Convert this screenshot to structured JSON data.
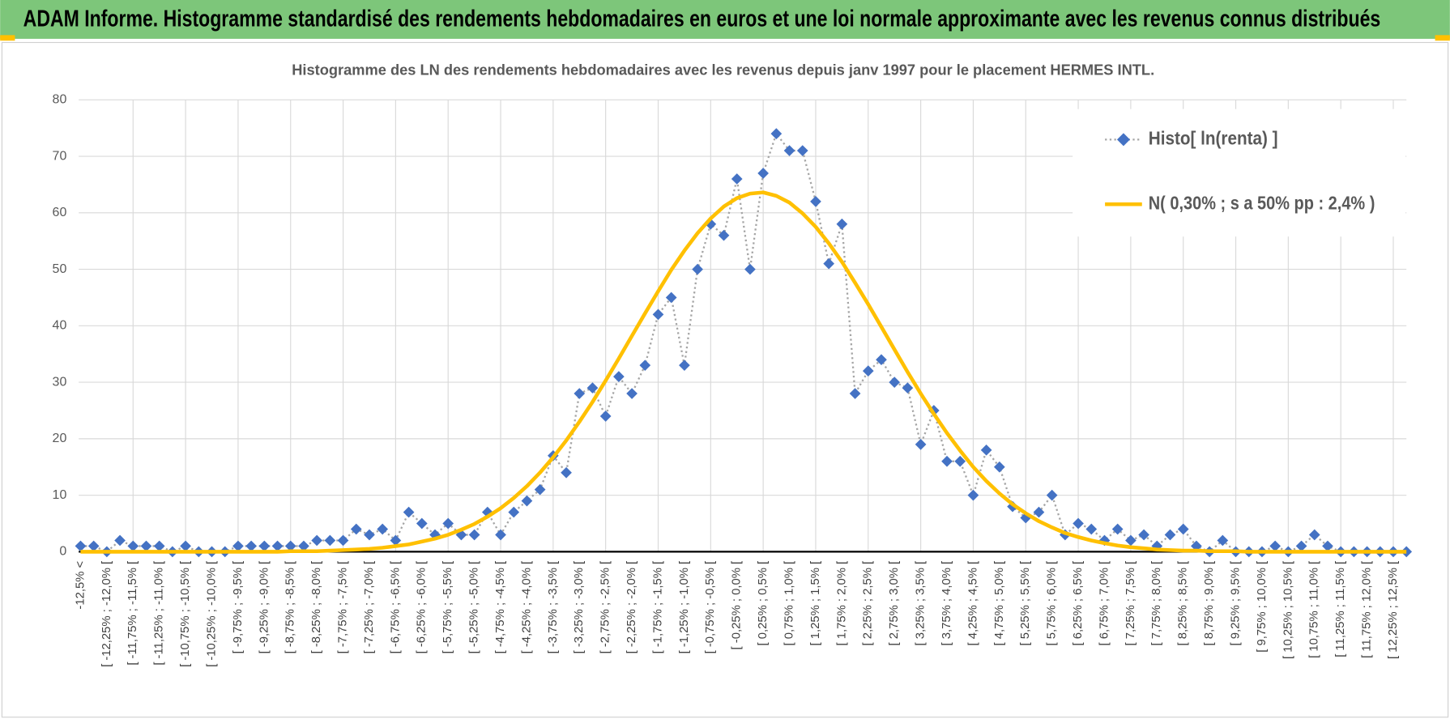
{
  "header": {
    "title": "ADAM Informe. Histogramme standardisé des rendements hebdomadaires en euros et une loi normale approximante avec les revenus connus distribués"
  },
  "chart_data": {
    "type": "line",
    "title": "Histogramme  des LN des rendements hebdomadaires avec les revenus depuis janv 1997 pour le placement HERMES INTL.",
    "categories": [
      "-12,5% <",
      null,
      "[ -12,25% ; -12,0% [",
      null,
      "[ -11,75% ; -11,5% [",
      null,
      "[ -11,25% ; -11,0% [",
      null,
      "[ -10,75% ; -10,5% [",
      null,
      "[ -10,25% ; -10,0% [",
      null,
      "[ -9,75% ; -9,5% [",
      null,
      "[ -9,25% ; -9,0% [",
      null,
      "[ -8,75% ; -8,5% [",
      null,
      "[ -8,25% ; -8,0% [",
      null,
      "[ -7,75% ; -7,5% [",
      null,
      "[ -7,25% ; -7,0% [",
      null,
      "[ -6,75% ; -6,5% [",
      null,
      "[ -6,25% ; -6,0% [",
      null,
      "[ -5,75% ; -5,5% [",
      null,
      "[ -5,25% ; -5,0% [",
      null,
      "[ -4,75% ; -4,5% [",
      null,
      "[ -4,25% ; -4,0% [",
      null,
      "[ -3,75% ; -3,5% [",
      null,
      "[ -3,25% ; -3,0% [",
      null,
      "[ -2,75% ; -2,5% [",
      null,
      "[ -2,25% ; -2,0% [",
      null,
      "[ -1,75% ; -1,5% [",
      null,
      "[ -1,25% ; -1,0% [",
      null,
      "[ -0,75% ; -0,5% [",
      null,
      "[ -0,25% ; 0,0% [",
      null,
      "[ 0,25% ; 0,5% [",
      null,
      "[ 0,75% ; 1,0% [",
      null,
      "[ 1,25% ; 1,5% [",
      null,
      "[ 1,75% ; 2,0% [",
      null,
      "[ 2,25% ; 2,5% [",
      null,
      "[ 2,75% ; 3,0% [",
      null,
      "[ 3,25% ; 3,5% [",
      null,
      "[ 3,75% ; 4,0% [",
      null,
      "[ 4,25% ; 4,5% [",
      null,
      "[ 4,75% ; 5,0% [",
      null,
      "[ 5,25% ; 5,5% [",
      null,
      "[ 5,75% ; 6,0% [",
      null,
      "[ 6,25% ; 6,5% [",
      null,
      "[ 6,75% ; 7,0% [",
      null,
      "[ 7,25% ; 7,5% [",
      null,
      "[ 7,75% ; 8,0% [",
      null,
      "[ 8,25% ; 8,5% [",
      null,
      "[ 8,75% ; 9,0% [",
      null,
      "[ 9,25% ; 9,5% [",
      null,
      "[ 9,75% ; 10,0% [",
      null,
      "[ 10,25% ; 10,5% [",
      null,
      "[ 10,75% ; 11,0% [",
      null,
      "[ 11,25% ; 11,5% [",
      null,
      "[ 11,75% ; 12,0% [",
      null,
      "[ 12,25% ; 12,5% [",
      null
    ],
    "series": [
      {
        "name": "Histo[ ln(renta) ]",
        "color": "#4472c4",
        "line_color": "#a5a5a5",
        "line_style": "dotted",
        "marker": "diamond",
        "values": [
          1,
          1,
          0,
          2,
          1,
          1,
          1,
          0,
          1,
          0,
          0,
          0,
          1,
          1,
          1,
          1,
          1,
          1,
          2,
          2,
          2,
          4,
          3,
          4,
          2,
          7,
          5,
          3,
          5,
          3,
          3,
          7,
          3,
          7,
          9,
          11,
          17,
          14,
          28,
          29,
          24,
          31,
          28,
          33,
          42,
          45,
          33,
          50,
          58,
          56,
          66,
          50,
          67,
          74,
          71,
          71,
          62,
          51,
          58,
          28,
          32,
          34,
          30,
          29,
          19,
          25,
          16,
          16,
          10,
          18,
          15,
          8,
          6,
          7,
          10,
          3,
          5,
          4,
          2,
          4,
          2,
          3,
          1,
          3,
          4,
          1,
          0,
          2,
          0,
          0,
          0,
          1,
          0,
          1,
          3,
          1,
          0,
          0,
          0,
          0,
          0,
          0
        ]
      },
      {
        "name": "N( 0,30% ; s a 50% pp : 2,4% )",
        "color": "#ffc000",
        "line_style": "solid",
        "values": [
          0,
          0,
          0,
          0,
          0,
          0,
          0,
          0,
          0,
          0,
          0,
          0,
          0,
          0,
          0,
          0,
          0.1,
          0.1,
          0.1,
          0.2,
          0.3,
          0.4,
          0.5,
          0.7,
          1.0,
          1.3,
          1.8,
          2.3,
          3.0,
          3.9,
          4.9,
          6.2,
          7.7,
          9.5,
          11.6,
          14.0,
          16.7,
          19.7,
          23.0,
          26.5,
          30.3,
          34.2,
          38.2,
          42.2,
          46.1,
          49.9,
          53.3,
          56.4,
          59.0,
          61.1,
          62.6,
          63.4,
          63.6,
          63.0,
          61.8,
          59.9,
          57.5,
          54.6,
          51.3,
          47.6,
          43.8,
          39.8,
          35.8,
          31.8,
          28.0,
          24.4,
          21.0,
          17.9,
          15.0,
          12.5,
          10.3,
          8.4,
          6.8,
          5.4,
          4.3,
          3.3,
          2.6,
          2.0,
          1.5,
          1.1,
          0.8,
          0.6,
          0.4,
          0.3,
          0.2,
          0.2,
          0.1,
          0.1,
          0.1,
          0,
          0,
          0,
          0,
          0,
          0,
          0,
          0,
          0,
          0,
          0,
          0,
          0
        ]
      }
    ],
    "ylim": [
      0,
      80
    ],
    "yticks": [
      0,
      10,
      20,
      30,
      40,
      50,
      60,
      70,
      80
    ],
    "grid": true,
    "legend": "top-right"
  }
}
